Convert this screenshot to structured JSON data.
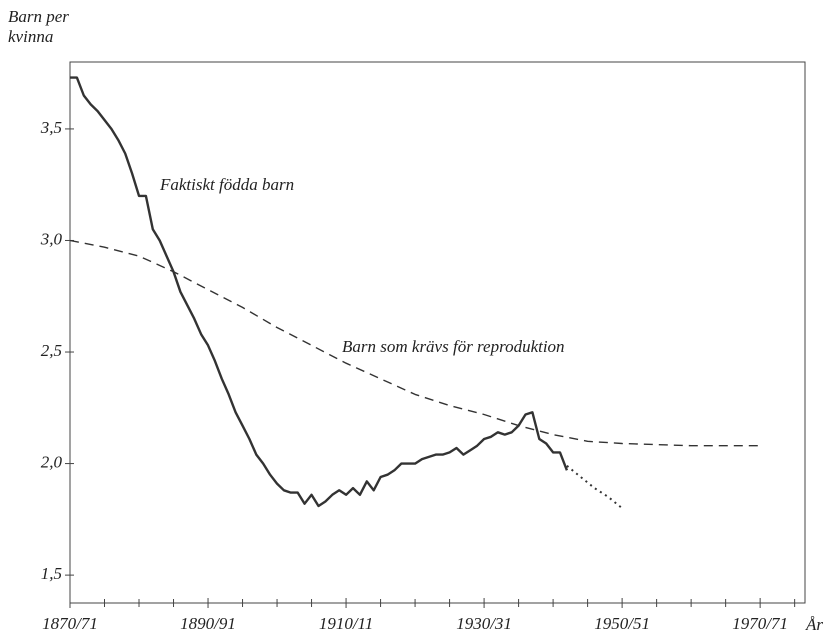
{
  "chart_data": {
    "type": "line",
    "ylabel": [
      "Barn per",
      "kvinna"
    ],
    "xlabel": "År",
    "xlim": [
      1870,
      1976.5
    ],
    "ylim": [
      1.375,
      3.8
    ],
    "xticks": [
      {
        "value": 1870,
        "label": "1870/71"
      },
      {
        "value": 1890,
        "label": "1890/91"
      },
      {
        "value": 1910,
        "label": "1910/11"
      },
      {
        "value": 1930,
        "label": "1930/31"
      },
      {
        "value": 1950,
        "label": "1950/51"
      },
      {
        "value": 1970,
        "label": "1970/71"
      }
    ],
    "xminorticks": [
      1875,
      1880,
      1885,
      1895,
      1900,
      1905,
      1915,
      1920,
      1925,
      1935,
      1940,
      1945,
      1955,
      1960,
      1965,
      1975
    ],
    "yticks": [
      {
        "value": 1.5,
        "label": "1,5"
      },
      {
        "value": 2.0,
        "label": "2,0"
      },
      {
        "value": 2.5,
        "label": "2,5"
      },
      {
        "value": 3.0,
        "label": "3,0"
      },
      {
        "value": 3.5,
        "label": "3,5"
      }
    ],
    "series": [
      {
        "name": "Faktiskt födda barn",
        "color": "#333333",
        "style": "solid",
        "x": [
          1870,
          1871,
          1872,
          1873,
          1874,
          1875,
          1876,
          1877,
          1878,
          1879,
          1880,
          1881,
          1882,
          1883,
          1884,
          1885,
          1886,
          1887,
          1888,
          1889,
          1890,
          1891,
          1892,
          1893,
          1894,
          1895,
          1896,
          1897,
          1898,
          1899,
          1900,
          1901,
          1902,
          1903,
          1904,
          1905,
          1906,
          1907,
          1908,
          1909,
          1910,
          1911,
          1912,
          1913,
          1914,
          1915,
          1916,
          1917,
          1918,
          1919,
          1920,
          1921,
          1922,
          1923,
          1924,
          1925,
          1926,
          1927,
          1928,
          1929,
          1930,
          1931,
          1932,
          1933,
          1934,
          1935,
          1936,
          1937,
          1938,
          1939,
          1940,
          1941,
          1942
        ],
        "values": [
          3.73,
          3.73,
          3.65,
          3.61,
          3.58,
          3.54,
          3.5,
          3.45,
          3.39,
          3.3,
          3.2,
          3.2,
          3.05,
          3.0,
          2.93,
          2.86,
          2.77,
          2.71,
          2.65,
          2.58,
          2.53,
          2.46,
          2.38,
          2.31,
          2.23,
          2.17,
          2.11,
          2.04,
          2.0,
          1.95,
          1.91,
          1.88,
          1.87,
          1.87,
          1.82,
          1.86,
          1.81,
          1.83,
          1.86,
          1.88,
          1.86,
          1.89,
          1.86,
          1.92,
          1.88,
          1.94,
          1.95,
          1.97,
          2.0,
          2.0,
          2.0,
          2.02,
          2.03,
          2.04,
          2.04,
          2.05,
          2.07,
          2.04,
          2.06,
          2.08,
          2.11,
          2.12,
          2.14,
          2.13,
          2.14,
          2.17,
          2.22,
          2.23,
          2.11,
          2.09,
          2.05,
          2.05,
          1.97
        ]
      },
      {
        "name": "Barn som krävs för reproduktion",
        "color": "#333333",
        "style": "dashed",
        "x": [
          1870,
          1875,
          1880,
          1885,
          1890,
          1895,
          1900,
          1905,
          1910,
          1915,
          1920,
          1925,
          1930,
          1935,
          1940,
          1945,
          1950,
          1960,
          1970
        ],
        "values": [
          3.0,
          2.97,
          2.93,
          2.86,
          2.78,
          2.7,
          2.61,
          2.53,
          2.45,
          2.38,
          2.31,
          2.26,
          2.22,
          2.17,
          2.13,
          2.1,
          2.09,
          2.08,
          2.08
        ]
      },
      {
        "color": "#333333",
        "style": "dotted",
        "x": [
          1942,
          1944,
          1946,
          1948,
          1950
        ],
        "values": [
          1.99,
          1.94,
          1.89,
          1.85,
          1.8
        ]
      }
    ]
  }
}
